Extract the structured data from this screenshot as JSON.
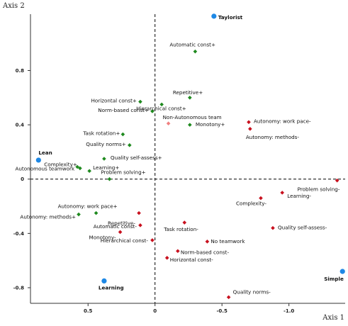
{
  "chart_data": {
    "type": "scatter",
    "title": "",
    "xlabel": "Axis 1",
    "ylabel": "Axis 2",
    "x_axis_reversed": true,
    "xlim": [
      0.93,
      -1.42
    ],
    "ylim": [
      -0.915,
      1.215
    ],
    "x_ticks": [
      0.5,
      0,
      -0.5,
      -1.0
    ],
    "x_tick_labels": [
      "0.5",
      "0",
      "-0.5",
      "-1.0"
    ],
    "y_ticks": [
      0.8,
      0.4,
      0,
      -0.4,
      -0.8
    ],
    "y_tick_labels": [
      "0.8",
      "0.4",
      "0",
      "-0.4",
      "-0.8"
    ],
    "grid": false,
    "reference_lines": "dashed lines at x=0 and y=0",
    "colors": {
      "green": "#1f8a1f",
      "red": "#c8101e",
      "blue": "#1e88e5",
      "pink": "#f08080"
    },
    "series": [
      {
        "marker": "diamond",
        "color": "green",
        "points": [
          {
            "label": "Automatic const+",
            "x": -0.3,
            "y": 0.94
          },
          {
            "label": "Repetitive+",
            "x": -0.26,
            "y": 0.6
          },
          {
            "label": "Hierarchical const+",
            "x": -0.05,
            "y": 0.55
          },
          {
            "label": "Horizontal const+",
            "x": 0.11,
            "y": 0.57
          },
          {
            "label": "Norm-based const+",
            "x": 0.02,
            "y": 0.5
          },
          {
            "label": "Monotony+",
            "x": -0.26,
            "y": 0.4
          },
          {
            "label": "Task rotation+",
            "x": 0.24,
            "y": 0.33
          },
          {
            "label": "Quality norms+",
            "x": 0.19,
            "y": 0.25
          },
          {
            "label": "Quality self-assess+",
            "x": 0.38,
            "y": 0.15
          },
          {
            "label": "Complexity+",
            "x": 0.56,
            "y": 0.08
          },
          {
            "label": "Learning+",
            "x": 0.49,
            "y": 0.06
          },
          {
            "label": "Autonomous teamwork",
            "x": 0.58,
            "y": 0.09
          },
          {
            "label": "Problem solving+",
            "x": 0.34,
            "y": 0.0
          },
          {
            "label": "Autonomy: work pace+",
            "x": 0.44,
            "y": -0.25
          },
          {
            "label": "Autonomy: methods+",
            "x": 0.57,
            "y": -0.26
          }
        ]
      },
      {
        "marker": "diamond",
        "color": "red",
        "points": [
          {
            "label": "Autonomy: work pace-",
            "x": -0.7,
            "y": 0.42
          },
          {
            "label": "Autonomy: methods-",
            "x": -0.71,
            "y": 0.37
          },
          {
            "label": "Problem solving-",
            "x": -1.36,
            "y": -0.01
          },
          {
            "label": "Learning-",
            "x": -0.95,
            "y": -0.1
          },
          {
            "label": "Complexity-",
            "x": -0.79,
            "y": -0.14
          },
          {
            "label": "Quality self-assess-",
            "x": -0.88,
            "y": -0.36
          },
          {
            "label": "Task rotation-",
            "x": -0.22,
            "y": -0.32
          },
          {
            "label": "Repetitive-",
            "x": 0.12,
            "y": -0.25
          },
          {
            "label": "Automatic const-",
            "x": 0.11,
            "y": -0.34
          },
          {
            "label": "Monotony-",
            "x": 0.26,
            "y": -0.39
          },
          {
            "label": "Hierarchical const-",
            "x": 0.02,
            "y": -0.45
          },
          {
            "label": "No teamwork",
            "x": -0.39,
            "y": -0.46
          },
          {
            "label": "Norm-based const-",
            "x": -0.17,
            "y": -0.53
          },
          {
            "label": "Horizontal const-",
            "x": -0.09,
            "y": -0.58
          },
          {
            "label": "Quality norms-",
            "x": -0.55,
            "y": -0.87
          }
        ]
      },
      {
        "marker": "diamond",
        "color": "pink",
        "points": [
          {
            "label": "Non-Autonomous team",
            "x": -0.1,
            "y": 0.41
          }
        ]
      },
      {
        "marker": "circle",
        "color": "blue",
        "points": [
          {
            "label": "Taylorist",
            "x": -0.44,
            "y": 1.2
          },
          {
            "label": "Lean",
            "x": 0.87,
            "y": 0.14
          },
          {
            "label": "Learning",
            "x": 0.38,
            "y": -0.75
          },
          {
            "label": "Simple",
            "x": -1.4,
            "y": -0.68
          }
        ]
      }
    ]
  }
}
